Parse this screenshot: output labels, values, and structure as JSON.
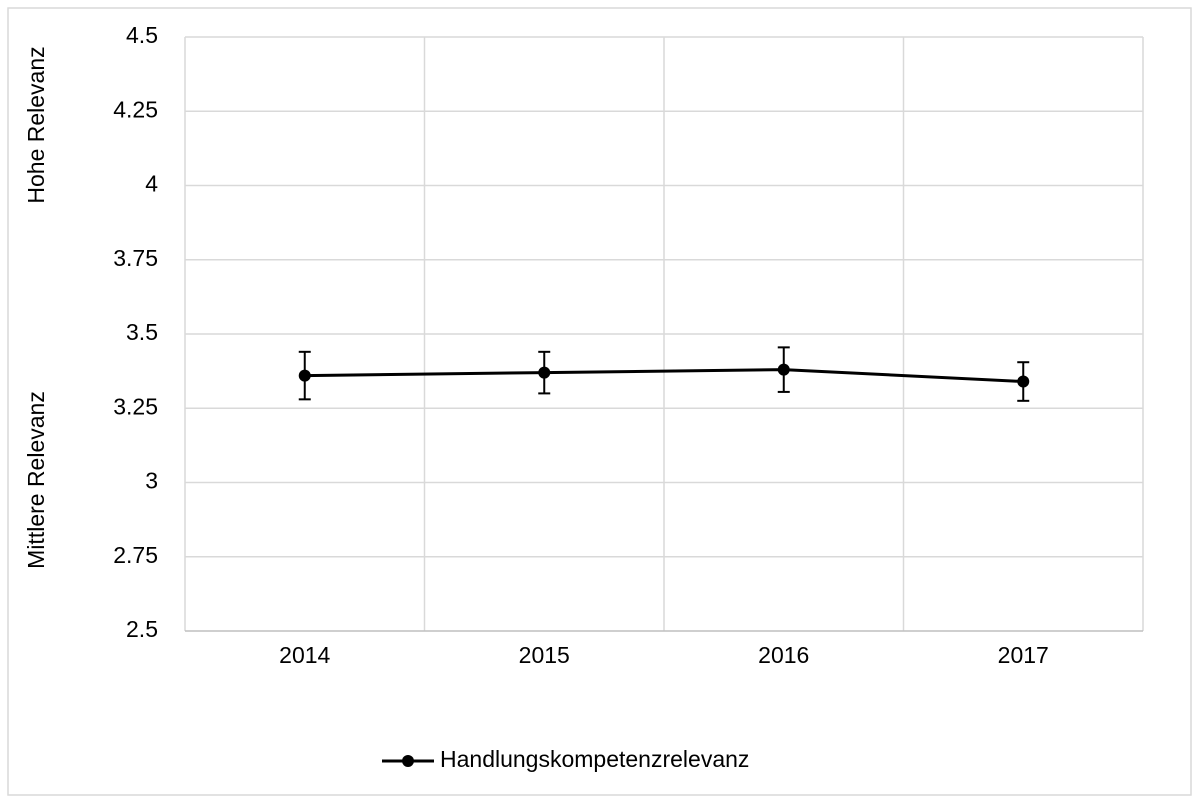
{
  "chart_data": {
    "type": "line",
    "y_axis_labels": [
      "Hohe Relevanz",
      "Mittlere Relevanz"
    ],
    "categories": [
      "2014",
      "2015",
      "2016",
      "2017"
    ],
    "series": [
      {
        "name": "Handlungskompetenzrelevanz",
        "color": "#000000",
        "values": [
          3.36,
          3.37,
          3.38,
          3.34
        ],
        "errors": [
          0.08,
          0.07,
          0.075,
          0.065
        ]
      }
    ],
    "ylim": [
      2.5,
      4.5
    ],
    "yticks": [
      2.5,
      2.75,
      3,
      3.25,
      3.5,
      3.75,
      4,
      4.25,
      4.5
    ],
    "grid": true,
    "legend": "bottom"
  }
}
